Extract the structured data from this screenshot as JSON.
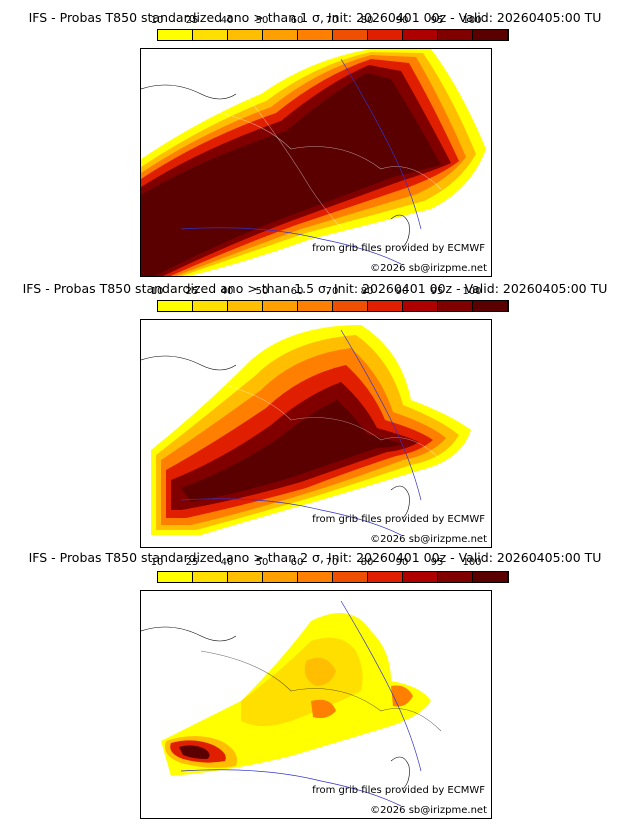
{
  "panels": [
    {
      "title": "IFS - Probas T850  standardized ano > than 1 σ, Init: 20260401 00z - Valid: 20260405:00 TU",
      "threshold": "1 σ"
    },
    {
      "title": "IFS - Probas T850  standardized ano > than 1.5 σ, Init: 20260401 00z - Valid: 20260405:00 TU",
      "threshold": "1.5 σ"
    },
    {
      "title": "IFS - Probas T850  standardized ano > than 2 σ, Init: 20260401 00z - Valid: 20260405:00 TU",
      "threshold": "2 σ"
    }
  ],
  "scale": {
    "labels": [
      "10",
      "25",
      "40",
      "50",
      "60",
      "70",
      "80",
      "90",
      "95",
      "100"
    ],
    "colors": [
      "#ffff00",
      "#ffdf00",
      "#ffbf00",
      "#ff9f00",
      "#ff7f00",
      "#ef4f00",
      "#df1f00",
      "#af0000",
      "#800000",
      "#5a0000"
    ]
  },
  "credits": {
    "source": "from grib files provided by ECMWF",
    "copyright": "©2026 sb@irizpme.net"
  }
}
